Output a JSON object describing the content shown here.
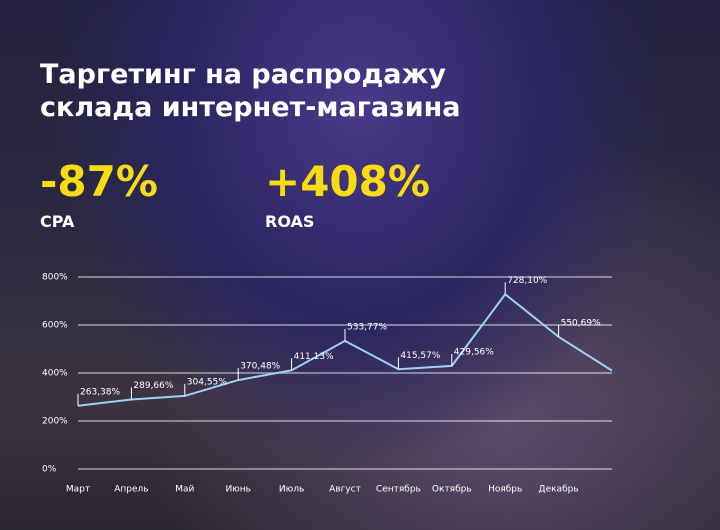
{
  "header": {
    "title_lines": [
      "Таргетинг на распродажу",
      "склада интернет-магазина"
    ]
  },
  "stats": [
    {
      "value": "-87%",
      "label": "CPA"
    },
    {
      "value": "+408%",
      "label": "ROAS"
    }
  ],
  "chart_data": {
    "type": "line",
    "categories": [
      "Март",
      "Апрель",
      "Май",
      "Июнь",
      "Июль",
      "Август",
      "Сентябрь",
      "Октябрь",
      "Ноябрь",
      "Декабрь",
      null
    ],
    "series": [
      {
        "color": "#9fd0f5",
        "values": [
          263.38,
          289.66,
          304.55,
          370.48,
          411.13,
          533.77,
          415.57,
          429.56,
          728.1,
          550.69,
          410
        ],
        "value_labels": [
          "263,38%",
          "289,66%",
          "304,55%",
          "370,48%",
          "411,13%",
          "533,77%",
          "415,57%",
          "429,56%",
          "728,10%",
          "550,69%",
          null
        ]
      }
    ],
    "ylim": [
      0,
      800
    ],
    "yticks": [
      {
        "value": 0,
        "label": "0%"
      },
      {
        "value": 200,
        "label": "200%"
      },
      {
        "value": 400,
        "label": "400%"
      },
      {
        "value": 600,
        "label": "600%"
      },
      {
        "value": 800,
        "label": "800%"
      }
    ],
    "grid": true
  }
}
